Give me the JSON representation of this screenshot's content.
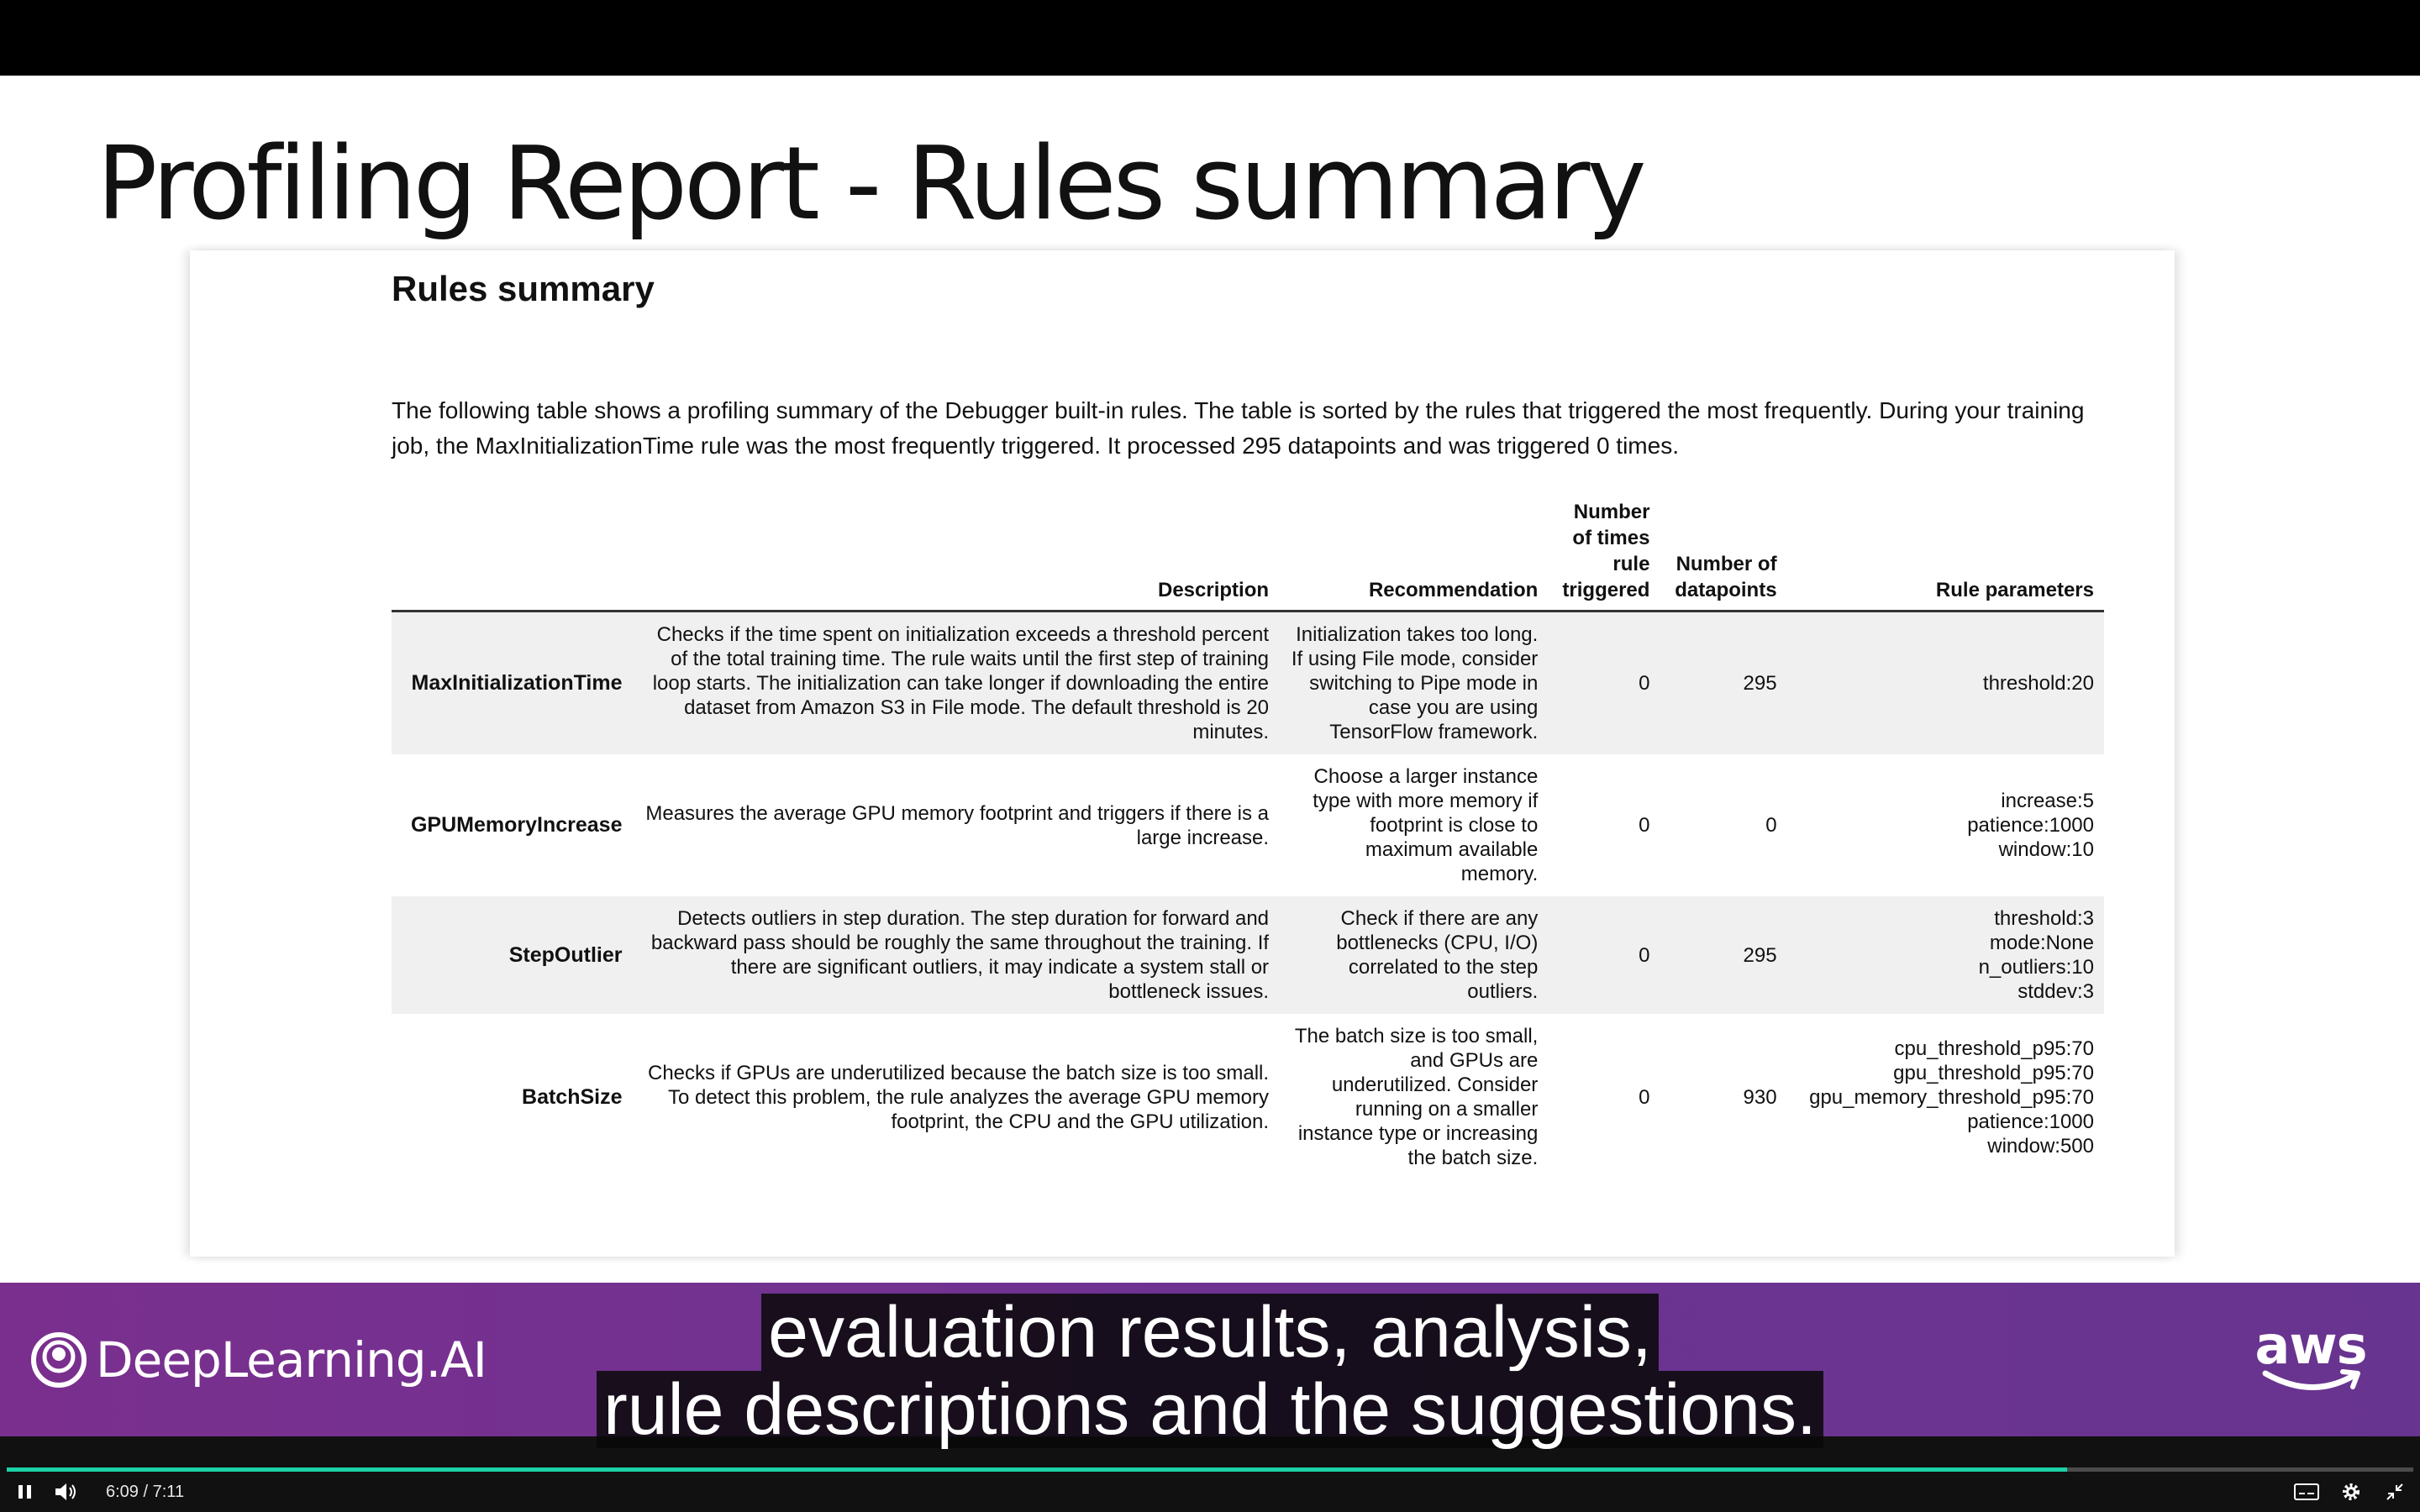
{
  "slide": {
    "title": "Profiling Report - Rules summary",
    "heading": "Rules summary",
    "intro": "The following table shows a profiling summary of the Debugger built-in rules. The table is sorted by the rules that triggered the most frequently. During your training job, the MaxInitializationTime rule was the most frequently triggered. It processed 295 datapoints and was triggered 0 times."
  },
  "table": {
    "headers": {
      "description": "Description",
      "recommendation": "Recommendation",
      "triggered": "Number of times rule triggered",
      "datapoints": "Number of datapoints",
      "parameters": "Rule parameters"
    },
    "rows": [
      {
        "name": "MaxInitializationTime",
        "description": "Checks if the time spent on initialization exceeds a threshold percent of the total training time. The rule waits until the first step of training loop starts. The initialization can take longer if downloading the entire dataset from Amazon S3 in File mode. The default threshold is 20 minutes.",
        "recommendation": "Initialization takes too long. If using File mode, consider switching to Pipe mode in case you are using TensorFlow framework.",
        "triggered": "0",
        "datapoints": "295",
        "parameters": [
          "threshold:20"
        ]
      },
      {
        "name": "GPUMemoryIncrease",
        "description": "Measures the average GPU memory footprint and triggers if there is a large increase.",
        "recommendation": "Choose a larger instance type with more memory if footprint is close to maximum available memory.",
        "triggered": "0",
        "datapoints": "0",
        "parameters": [
          "increase:5",
          "patience:1000",
          "window:10"
        ]
      },
      {
        "name": "StepOutlier",
        "description": "Detects outliers in step duration. The step duration for forward and backward pass should be roughly the same throughout the training. If there are significant outliers, it may indicate a system stall or bottleneck issues.",
        "recommendation": "Check if there are any bottlenecks (CPU, I/O) correlated to the step outliers.",
        "triggered": "0",
        "datapoints": "295",
        "parameters": [
          "threshold:3",
          "mode:None",
          "n_outliers:10",
          "stddev:3"
        ]
      },
      {
        "name": "BatchSize",
        "description": "Checks if GPUs are underutilized because the batch size is too small. To detect this problem, the rule analyzes the average GPU memory footprint, the CPU and the GPU utilization.",
        "recommendation": "The batch size is too small, and GPUs are underutilized. Consider running on a smaller instance type or increasing the batch size.",
        "triggered": "0",
        "datapoints": "930",
        "parameters": [
          "cpu_threshold_p95:70",
          "gpu_threshold_p95:70",
          "gpu_memory_threshold_p95:70",
          "patience:1000",
          "window:500"
        ]
      }
    ]
  },
  "branding": {
    "left_logo": "DeepLearning.AI",
    "right_logo": "aws"
  },
  "captions": [
    "evaluation results, analysis,",
    "rule descriptions and the suggestions."
  ],
  "player": {
    "current_time": "6:09",
    "separator": "/",
    "duration": "7:11",
    "progress_fraction": 0.856,
    "accent_color": "#1bd3a8",
    "icons": [
      "pause-icon",
      "volume-icon",
      "captions-icon",
      "settings-icon",
      "fullscreen-exit-icon"
    ]
  }
}
